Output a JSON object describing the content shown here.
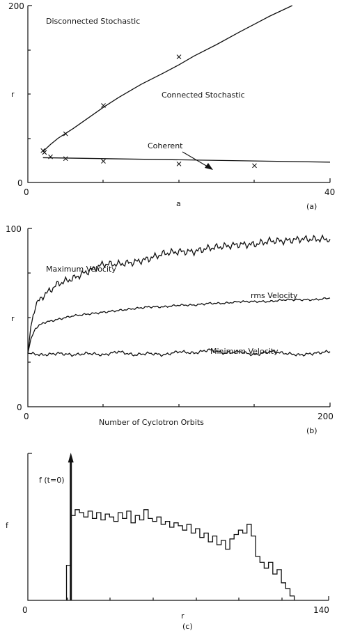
{
  "chart_data": [
    {
      "type": "scatter",
      "panel_label": "(a)",
      "xlabel": "a",
      "ylabel": "r",
      "xlim": [
        0,
        40
      ],
      "ylim": [
        0,
        200
      ],
      "x_tick_labels": [
        "0",
        "40"
      ],
      "y_tick_labels": [
        "0",
        "200"
      ],
      "region_labels": [
        "Disconnected Stochastic",
        "Connected Stochastic",
        "Coherent"
      ],
      "boundary_curve": {
        "x": [
          2,
          3,
          4,
          6,
          8,
          10,
          12,
          15,
          18,
          20,
          22,
          25,
          28,
          30,
          32,
          35
        ],
        "y": [
          35,
          43,
          50,
          61,
          73,
          85,
          96,
          111,
          124,
          133,
          143,
          156,
          170,
          179,
          188,
          200
        ]
      },
      "coherent_line": {
        "x": [
          2,
          40
        ],
        "y": [
          28,
          23
        ]
      },
      "markers": {
        "x": [
          2,
          2.2,
          3,
          5,
          5,
          10,
          10,
          20,
          20,
          30
        ],
        "y": [
          36,
          34,
          29,
          55,
          27,
          87,
          24,
          142,
          21,
          19
        ]
      }
    },
    {
      "type": "line",
      "panel_label": "(b)",
      "xlabel": "Number of Cyclotron Orbits",
      "ylabel": "r",
      "xlim": [
        0,
        200
      ],
      "ylim": [
        0,
        100
      ],
      "x_tick_labels": [
        "0",
        "200"
      ],
      "y_tick_labels": [
        "0",
        "100"
      ],
      "series": [
        {
          "name": "Maximum Velocity",
          "x": [
            0,
            2,
            5,
            10,
            20,
            30,
            40,
            50,
            60,
            70,
            80,
            90,
            100,
            110,
            120,
            130,
            140,
            150,
            160,
            170,
            180,
            190,
            200
          ],
          "y": [
            30,
            45,
            57,
            62,
            69,
            72,
            76,
            80,
            80,
            81,
            83,
            86,
            87,
            87,
            89,
            90,
            91,
            91,
            93,
            93,
            94,
            94,
            94
          ]
        },
        {
          "name": "rms Velocity",
          "x": [
            0,
            2,
            5,
            10,
            20,
            30,
            40,
            50,
            60,
            70,
            80,
            90,
            100,
            110,
            120,
            130,
            140,
            150,
            160,
            170,
            180,
            190,
            200
          ],
          "y": [
            30,
            38,
            44,
            47,
            49,
            51,
            52,
            53,
            54,
            55,
            56,
            56,
            57,
            57,
            58,
            58,
            59,
            59,
            59,
            60,
            60,
            60,
            61
          ]
        },
        {
          "name": "Minimum Velocity",
          "x": [
            0,
            10,
            20,
            30,
            40,
            50,
            60,
            70,
            80,
            90,
            100,
            110,
            120,
            130,
            140,
            150,
            160,
            170,
            180,
            190,
            200
          ],
          "y": [
            30,
            29,
            30,
            29,
            30,
            29,
            31,
            29,
            30,
            29,
            31,
            30,
            32,
            30,
            31,
            29,
            31,
            30,
            29,
            30,
            31
          ]
        }
      ]
    },
    {
      "type": "area",
      "panel_label": "(c)",
      "xlabel": "r",
      "ylabel": "f",
      "xlim": [
        0,
        140
      ],
      "x_tick_labels": [
        "0",
        "140"
      ],
      "annotation": "f (t=0)",
      "initial_spike_r": 20,
      "histogram": {
        "x": [
          18,
          19,
          20,
          22,
          24,
          26,
          28,
          30,
          32,
          34,
          36,
          38,
          40,
          42,
          44,
          46,
          48,
          50,
          52,
          54,
          56,
          58,
          60,
          62,
          64,
          66,
          68,
          70,
          72,
          74,
          76,
          78,
          80,
          82,
          84,
          86,
          88,
          90,
          92,
          94,
          96,
          98,
          100,
          102,
          104,
          106,
          108,
          110,
          112,
          114,
          116,
          118,
          120,
          122,
          124
        ],
        "y": [
          0.24,
          0.24,
          0.58,
          0.62,
          0.6,
          0.57,
          0.61,
          0.56,
          0.6,
          0.55,
          0.59,
          0.57,
          0.54,
          0.6,
          0.56,
          0.61,
          0.53,
          0.58,
          0.55,
          0.62,
          0.56,
          0.54,
          0.57,
          0.52,
          0.54,
          0.5,
          0.53,
          0.51,
          0.48,
          0.52,
          0.46,
          0.49,
          0.43,
          0.46,
          0.4,
          0.44,
          0.38,
          0.41,
          0.35,
          0.42,
          0.45,
          0.48,
          0.46,
          0.52,
          0.44,
          0.3,
          0.26,
          0.22,
          0.26,
          0.18,
          0.21,
          0.12,
          0.08,
          0.03,
          0.0
        ]
      }
    }
  ]
}
